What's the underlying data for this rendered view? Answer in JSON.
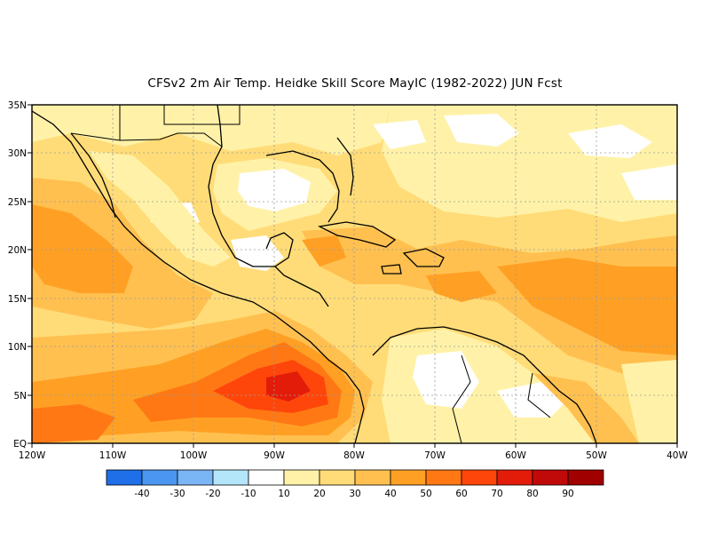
{
  "title": "CFSv2  2m Air Temp. Heidke Skill Score MayIC (1982-2022) JUN Fcst",
  "map": {
    "lon_ticks": [
      "120W",
      "110W",
      "100W",
      "90W",
      "80W",
      "70W",
      "60W",
      "50W",
      "40W"
    ],
    "lat_ticks": [
      "EQ",
      "5N",
      "10N",
      "15N",
      "20N",
      "25N",
      "30N",
      "35N"
    ]
  },
  "legend": {
    "colors": [
      "#1e6fe8",
      "#4a96f0",
      "#7ab5f5",
      "#b4e6fa",
      "#ffffff",
      "#fff2a8",
      "#ffdc78",
      "#ffc050",
      "#ffa024",
      "#ff7814",
      "#ff460a",
      "#e31c0a",
      "#c00a0a",
      "#a00000"
    ],
    "labels": [
      "-40",
      "-30",
      "-20",
      "-10",
      "10",
      "20",
      "30",
      "40",
      "50",
      "60",
      "70",
      "80",
      "90"
    ]
  }
}
